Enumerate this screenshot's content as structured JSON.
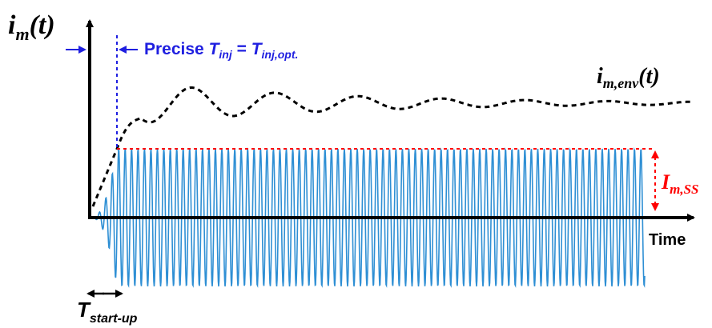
{
  "y_axis_label": {
    "main": "i",
    "sub": "m",
    "rest": "(t)"
  },
  "x_axis_label": "Time",
  "injection_label": {
    "prefix": "Precise ",
    "T1": "T",
    "sub1": "inj",
    "eq": " = ",
    "T2": "T",
    "sub2": "inj,opt."
  },
  "envelope_label": {
    "main": "i",
    "sub": "m,env",
    "rest": "(t)"
  },
  "amplitude_label": {
    "main": "I",
    "sub": "m,SS"
  },
  "startup_label": {
    "main": "T",
    "sub": "start-up"
  },
  "colors": {
    "axes": "#000000",
    "waveform": "#2e8fd4",
    "envelope": "#000000",
    "steady_state_marker": "#ff0000",
    "injection_marker": "#1f1fe0"
  },
  "icons": [
    "x-axis-arrow",
    "y-axis-arrow",
    "double-arrow-startup",
    "double-arrow-amplitude",
    "injection-arrow"
  ]
}
